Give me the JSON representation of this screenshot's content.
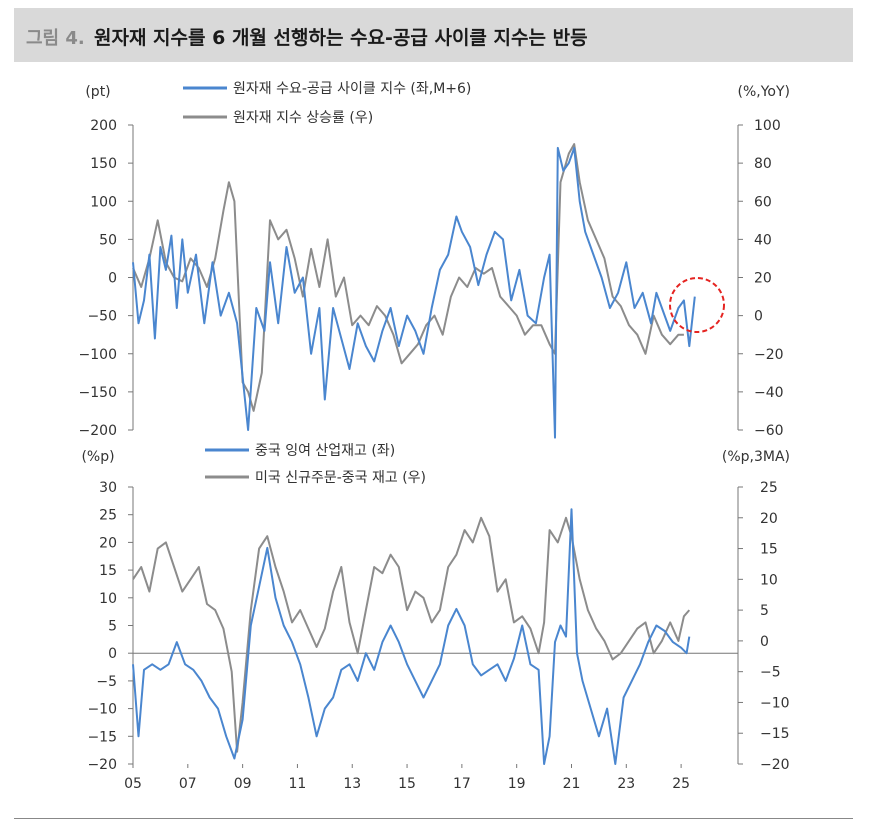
{
  "header": {
    "figure_label": "그림 4.",
    "title": "원자재 지수를 6 개월 선행하는 수요-공급 사이클 지수는 반등"
  },
  "chart_data": [
    {
      "type": "line",
      "left_unit": "(pt)",
      "right_unit": "(%,YoY)",
      "ylim_left": [
        -200,
        200
      ],
      "ylim_right": [
        -60,
        100
      ],
      "yticks_left": [
        200,
        150,
        100,
        50,
        0,
        -50,
        -100,
        -150,
        -200
      ],
      "yticks_right": [
        100,
        80,
        60,
        40,
        20,
        0,
        -20,
        -40,
        -60
      ],
      "xlim": [
        2005.0,
        2026.2
      ],
      "series": [
        {
          "name": "원자재 수요-공급 사이클 지수 (좌,M+6)",
          "axis": "left",
          "color": "#4a86cf",
          "x": [
            2005.0,
            2005.2,
            2005.4,
            2005.6,
            2005.8,
            2006.0,
            2006.2,
            2006.4,
            2006.6,
            2006.8,
            2007.0,
            2007.3,
            2007.6,
            2007.9,
            2008.2,
            2008.5,
            2008.8,
            2009.0,
            2009.2,
            2009.5,
            2009.8,
            2010.0,
            2010.3,
            2010.6,
            2010.9,
            2011.2,
            2011.5,
            2011.8,
            2012.0,
            2012.3,
            2012.6,
            2012.9,
            2013.2,
            2013.5,
            2013.8,
            2014.1,
            2014.4,
            2014.7,
            2015.0,
            2015.3,
            2015.6,
            2015.9,
            2016.2,
            2016.5,
            2016.8,
            2017.0,
            2017.3,
            2017.6,
            2017.9,
            2018.2,
            2018.5,
            2018.8,
            2019.1,
            2019.4,
            2019.7,
            2020.0,
            2020.2,
            2020.4,
            2020.5,
            2020.7,
            2020.9,
            2021.1,
            2021.3,
            2021.5,
            2021.8,
            2022.1,
            2022.4,
            2022.7,
            2023.0,
            2023.3,
            2023.6,
            2023.9,
            2024.1,
            2024.3,
            2024.6,
            2024.9,
            2025.1,
            2025.3,
            2025.5
          ],
          "y": [
            20,
            -60,
            -30,
            30,
            -80,
            40,
            10,
            55,
            -40,
            50,
            -20,
            30,
            -60,
            20,
            -50,
            -20,
            -60,
            -130,
            -200,
            -40,
            -70,
            20,
            -60,
            40,
            -20,
            0,
            -100,
            -40,
            -160,
            -40,
            -80,
            -120,
            -60,
            -90,
            -110,
            -70,
            -40,
            -90,
            -50,
            -70,
            -100,
            -40,
            10,
            30,
            80,
            60,
            40,
            -10,
            30,
            60,
            50,
            -30,
            10,
            -50,
            -60,
            0,
            30,
            -210,
            170,
            140,
            150,
            170,
            100,
            60,
            30,
            0,
            -40,
            -20,
            20,
            -40,
            -20,
            -60,
            -20,
            -40,
            -70,
            -40,
            -30,
            -90,
            -25
          ]
        },
        {
          "name": "원자재 지수 상승률 (우)",
          "axis": "right",
          "color": "#8c8c8c",
          "x": [
            2005.0,
            2005.3,
            2005.6,
            2005.9,
            2006.2,
            2006.5,
            2006.8,
            2007.1,
            2007.4,
            2007.7,
            2008.0,
            2008.3,
            2008.5,
            2008.7,
            2009.0,
            2009.2,
            2009.4,
            2009.7,
            2010.0,
            2010.3,
            2010.6,
            2010.9,
            2011.2,
            2011.5,
            2011.8,
            2012.1,
            2012.4,
            2012.7,
            2013.0,
            2013.3,
            2013.6,
            2013.9,
            2014.2,
            2014.5,
            2014.8,
            2015.1,
            2015.4,
            2015.7,
            2016.0,
            2016.3,
            2016.6,
            2016.9,
            2017.2,
            2017.5,
            2017.8,
            2018.1,
            2018.4,
            2018.7,
            2019.0,
            2019.3,
            2019.6,
            2019.9,
            2020.2,
            2020.4,
            2020.6,
            2020.9,
            2021.1,
            2021.3,
            2021.6,
            2021.9,
            2022.2,
            2022.5,
            2022.8,
            2023.1,
            2023.4,
            2023.7,
            2024.0,
            2024.3,
            2024.6,
            2024.9,
            2025.1
          ],
          "y": [
            25,
            15,
            30,
            50,
            28,
            20,
            18,
            30,
            25,
            15,
            30,
            55,
            70,
            60,
            -35,
            -40,
            -50,
            -30,
            50,
            40,
            45,
            30,
            10,
            35,
            15,
            40,
            10,
            20,
            -5,
            0,
            -5,
            5,
            0,
            -10,
            -25,
            -20,
            -15,
            -5,
            0,
            -10,
            10,
            20,
            15,
            25,
            22,
            25,
            10,
            5,
            0,
            -10,
            -5,
            -5,
            -15,
            -20,
            70,
            85,
            90,
            70,
            50,
            40,
            30,
            10,
            5,
            -5,
            -10,
            -20,
            0,
            -10,
            -15,
            -10,
            -10
          ]
        }
      ]
    },
    {
      "type": "line",
      "left_unit": "(%p)",
      "right_unit": "(%p,3MA)",
      "ylim_left": [
        -20,
        30
      ],
      "ylim_right": [
        -20,
        25
      ],
      "yticks_left": [
        30,
        25,
        20,
        15,
        10,
        5,
        0,
        -5,
        -10,
        -15,
        -20
      ],
      "yticks_right": [
        25,
        20,
        15,
        10,
        5,
        0,
        -5,
        -10,
        -15,
        -20
      ],
      "xticks": [
        "05",
        "07",
        "09",
        "11",
        "13",
        "15",
        "17",
        "19",
        "21",
        "23",
        "25"
      ],
      "xlim": [
        2005.0,
        2026.2
      ],
      "series": [
        {
          "name": "중국 잉여 산업재고 (좌)",
          "axis": "left",
          "color": "#4a86cf",
          "x": [
            2005.0,
            2005.2,
            2005.4,
            2005.7,
            2006.0,
            2006.3,
            2006.6,
            2006.9,
            2007.2,
            2007.5,
            2007.8,
            2008.1,
            2008.4,
            2008.7,
            2009.0,
            2009.3,
            2009.6,
            2009.9,
            2010.2,
            2010.5,
            2010.8,
            2011.1,
            2011.4,
            2011.7,
            2012.0,
            2012.3,
            2012.6,
            2012.9,
            2013.2,
            2013.5,
            2013.8,
            2014.1,
            2014.4,
            2014.7,
            2015.0,
            2015.3,
            2015.6,
            2015.9,
            2016.2,
            2016.5,
            2016.8,
            2017.1,
            2017.4,
            2017.7,
            2018.0,
            2018.3,
            2018.6,
            2018.9,
            2019.2,
            2019.5,
            2019.8,
            2020.0,
            2020.2,
            2020.4,
            2020.6,
            2020.8,
            2021.0,
            2021.2,
            2021.4,
            2021.7,
            2022.0,
            2022.3,
            2022.6,
            2022.9,
            2023.2,
            2023.5,
            2023.8,
            2024.1,
            2024.4,
            2024.7,
            2025.0,
            2025.2,
            2025.3
          ],
          "y": [
            -2,
            -15,
            -3,
            -2,
            -3,
            -2,
            2,
            -2,
            -3,
            -5,
            -8,
            -10,
            -15,
            -19,
            -12,
            5,
            12,
            19,
            10,
            5,
            2,
            -2,
            -8,
            -15,
            -10,
            -8,
            -3,
            -2,
            -5,
            0,
            -3,
            2,
            5,
            2,
            -2,
            -5,
            -8,
            -5,
            -2,
            5,
            8,
            5,
            -2,
            -4,
            -3,
            -2,
            -5,
            -1,
            5,
            -2,
            -3,
            -20,
            -15,
            2,
            5,
            3,
            26,
            0,
            -5,
            -10,
            -15,
            -10,
            -20,
            -8,
            -5,
            -2,
            2,
            5,
            4,
            2,
            1,
            0,
            3
          ]
        },
        {
          "name": "미국 신규주문-중국 재고 (우)",
          "axis": "right",
          "color": "#8c8c8c",
          "x": [
            2005.0,
            2005.3,
            2005.6,
            2005.9,
            2006.2,
            2006.5,
            2006.8,
            2007.1,
            2007.4,
            2007.7,
            2008.0,
            2008.3,
            2008.6,
            2008.8,
            2009.0,
            2009.3,
            2009.6,
            2009.9,
            2010.2,
            2010.5,
            2010.8,
            2011.1,
            2011.4,
            2011.7,
            2012.0,
            2012.3,
            2012.6,
            2012.9,
            2013.2,
            2013.5,
            2013.8,
            2014.1,
            2014.4,
            2014.7,
            2015.0,
            2015.3,
            2015.6,
            2015.9,
            2016.2,
            2016.5,
            2016.8,
            2017.1,
            2017.4,
            2017.7,
            2018.0,
            2018.3,
            2018.6,
            2018.9,
            2019.2,
            2019.5,
            2019.8,
            2020.0,
            2020.2,
            2020.5,
            2020.8,
            2021.0,
            2021.3,
            2021.6,
            2021.9,
            2022.2,
            2022.5,
            2022.8,
            2023.1,
            2023.4,
            2023.7,
            2024.0,
            2024.3,
            2024.6,
            2024.9,
            2025.1,
            2025.3
          ],
          "y": [
            10,
            12,
            8,
            15,
            16,
            12,
            8,
            10,
            12,
            6,
            5,
            2,
            -5,
            -18,
            -10,
            5,
            15,
            17,
            12,
            8,
            3,
            5,
            2,
            -1,
            2,
            8,
            12,
            3,
            -2,
            5,
            12,
            11,
            14,
            12,
            5,
            8,
            7,
            3,
            5,
            12,
            14,
            18,
            16,
            20,
            17,
            8,
            10,
            3,
            4,
            2,
            -2,
            3,
            18,
            16,
            20,
            17,
            10,
            5,
            2,
            0,
            -3,
            -2,
            0,
            2,
            3,
            -2,
            0,
            3,
            0,
            4,
            5
          ]
        }
      ]
    }
  ]
}
